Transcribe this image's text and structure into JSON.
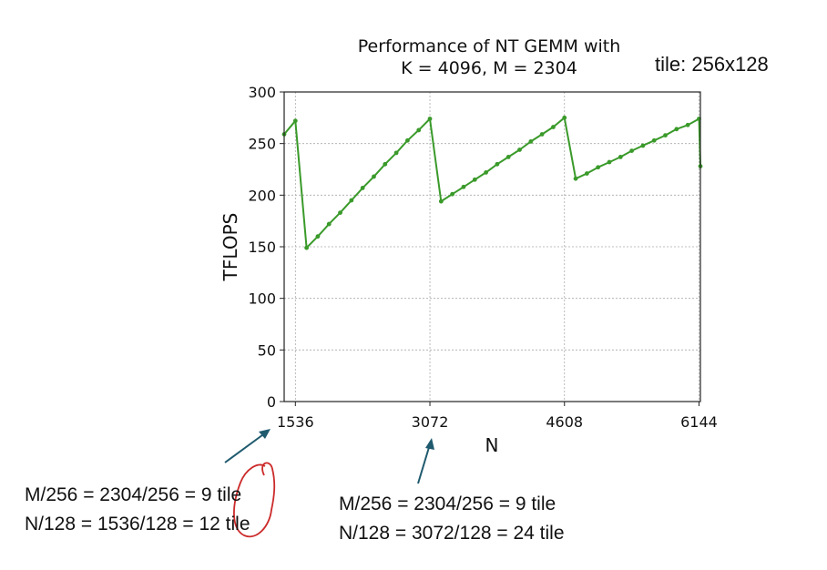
{
  "chart_data": {
    "type": "line",
    "title_line1": "Performance of NT GEMM with",
    "title_line2": "K = 4096, M = 2304",
    "xlabel": "N",
    "ylabel": "TFLOPS",
    "xlim": [
      1408,
      6160
    ],
    "ylim": [
      0,
      300
    ],
    "xticks": [
      1536,
      3072,
      4608,
      6144
    ],
    "yticks": [
      0,
      50,
      100,
      150,
      200,
      250,
      300
    ],
    "grid": true,
    "line_color": "#3a9a2a",
    "segments": [
      {
        "x": [
          1408,
          1536
        ],
        "y": [
          259,
          272
        ]
      },
      {
        "x": [
          1664,
          1792,
          1920,
          2048,
          2176,
          2304,
          2432,
          2560,
          2688,
          2816,
          2944,
          3072
        ],
        "y": [
          149,
          160,
          172,
          183,
          195,
          207,
          218,
          230,
          241,
          253,
          263,
          274
        ]
      },
      {
        "x": [
          3200,
          3328,
          3456,
          3584,
          3712,
          3840,
          3968,
          4096,
          4224,
          4352,
          4480,
          4608
        ],
        "y": [
          194,
          201,
          208,
          215,
          222,
          230,
          237,
          244,
          252,
          259,
          266,
          275
        ]
      },
      {
        "x": [
          4736,
          4864,
          4992,
          5120,
          5248,
          5376,
          5504,
          5632,
          5760,
          5888,
          6016,
          6144
        ],
        "y": [
          216,
          221,
          227,
          232,
          237,
          243,
          248,
          253,
          258,
          264,
          268,
          274
        ]
      },
      {
        "x": [
          6160
        ],
        "y": [
          228
        ]
      }
    ]
  },
  "annotations": {
    "tile_note": "tile: 256x128",
    "left_line1": "M/256 = 2304/256 = 9 tile",
    "left_line2": "N/128 = 1536/128 = 12 tile",
    "right_line1": "M/256 = 2304/256 = 9 tile",
    "right_line2": "N/128 = 3072/128 = 24 tile"
  },
  "colors": {
    "arrow": "#1f5a6e",
    "circle": "#cc2a2a",
    "grid": "#aaaaaa"
  }
}
